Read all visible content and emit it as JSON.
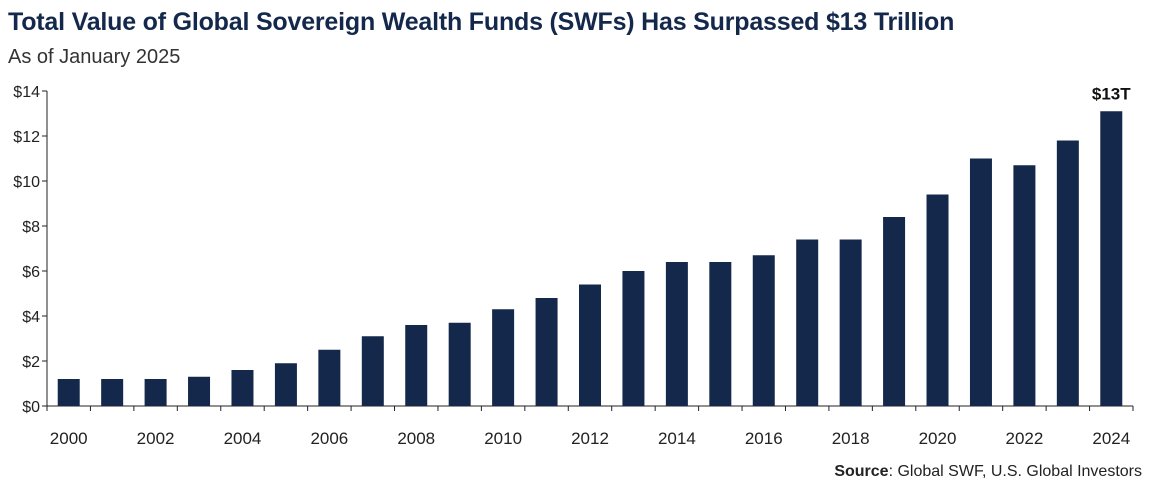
{
  "title": "Total Value of Global Sovereign Wealth Funds (SWFs) Has Surpassed $13 Trillion",
  "subtitle": "As of January 2025",
  "source": {
    "label": "Source",
    "text": ": Global SWF, U.S. Global Investors"
  },
  "chart_data": {
    "type": "bar",
    "title": "Total Value of Global Sovereign Wealth Funds (SWFs) Has Surpassed $13 Trillion",
    "subtitle": "As of January 2025",
    "categories": [
      "2000",
      "2001",
      "2002",
      "2003",
      "2004",
      "2005",
      "2006",
      "2007",
      "2008",
      "2009",
      "2010",
      "2011",
      "2012",
      "2013",
      "2014",
      "2015",
      "2016",
      "2017",
      "2018",
      "2019",
      "2020",
      "2021",
      "2022",
      "2023",
      "2024"
    ],
    "values": [
      1.2,
      1.2,
      1.2,
      1.3,
      1.6,
      1.9,
      2.5,
      3.1,
      3.6,
      3.7,
      4.3,
      4.8,
      5.4,
      6.0,
      6.4,
      6.4,
      6.7,
      7.4,
      7.4,
      8.4,
      9.4,
      11.0,
      10.7,
      11.8,
      13.1
    ],
    "x_tick_labels": [
      "2000",
      "2002",
      "2004",
      "2006",
      "2008",
      "2010",
      "2012",
      "2014",
      "2016",
      "2018",
      "2020",
      "2022",
      "2024"
    ],
    "y_tick_labels": [
      "$0",
      "$2",
      "$4",
      "$6",
      "$8",
      "$10",
      "$12",
      "$14"
    ],
    "y_ticks": [
      0,
      2,
      4,
      6,
      8,
      10,
      12,
      14
    ],
    "ylim": [
      0,
      14
    ],
    "xlabel": "",
    "ylabel": "",
    "annotations": [
      {
        "category": "2024",
        "text": "$13T"
      }
    ],
    "bar_color": "#14284b",
    "grid": false
  }
}
